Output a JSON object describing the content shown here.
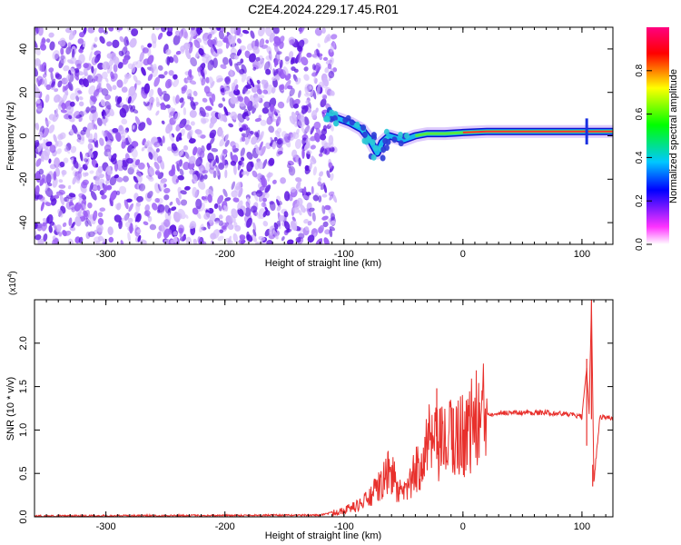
{
  "title": "C2E4.2024.229.17.45.R01",
  "chart_data": [
    {
      "type": "heatmap",
      "xlabel": "Height of straight line (km)",
      "ylabel": "Frequency (Hz)",
      "xlim": [
        -360,
        126
      ],
      "ylim": [
        -50,
        50
      ],
      "xticks": [
        -300,
        -200,
        -100,
        0,
        100
      ],
      "yticks": [
        -40,
        -20,
        0,
        20,
        40
      ],
      "colorbar": {
        "label": "Normalized spectral amplitude",
        "range": [
          0,
          1
        ],
        "ticks": [
          "0.0",
          "0.2",
          "0.4",
          "0.6",
          "0.8"
        ],
        "stops": [
          "#ffffff",
          "#ff33ff",
          "#0000ff",
          "#00c8ff",
          "#00ff00",
          "#ffff00",
          "#ff0000",
          "#ff0080"
        ]
      },
      "noise_region": {
        "x": [
          -360,
          -112
        ],
        "amplitude_range": [
          0.02,
          0.1
        ],
        "color": "#7b2cf0"
      },
      "signal_track": [
        {
          "x": -115,
          "y": 10
        },
        {
          "x": -105,
          "y": 8
        },
        {
          "x": -95,
          "y": 6
        },
        {
          "x": -85,
          "y": 3
        },
        {
          "x": -78,
          "y": -2
        },
        {
          "x": -72,
          "y": -8
        },
        {
          "x": -68,
          "y": -3
        },
        {
          "x": -62,
          "y": 0
        },
        {
          "x": -50,
          "y": -2
        },
        {
          "x": -40,
          "y": 0
        },
        {
          "x": -30,
          "y": 1
        },
        {
          "x": -15,
          "y": 1
        },
        {
          "x": 0,
          "y": 1.5
        },
        {
          "x": 20,
          "y": 2
        },
        {
          "x": 50,
          "y": 2
        },
        {
          "x": 80,
          "y": 2
        },
        {
          "x": 100,
          "y": 2
        },
        {
          "x": 126,
          "y": 2
        }
      ]
    },
    {
      "type": "line",
      "xlabel": "Height of straight line (km)",
      "ylabel": "SNR (10 * v/v)",
      "y_multiplier": "(x10",
      "y_multiplier_exp": "4",
      "y_multiplier_close": ")",
      "xlim": [
        -360,
        126
      ],
      "ylim": [
        0,
        2.5
      ],
      "xticks": [
        -300,
        -200,
        -100,
        0,
        100
      ],
      "yticks": [
        "0.0",
        "0.5",
        "1.0",
        "1.5",
        "2.0"
      ],
      "yticks_values": [
        0,
        0.5,
        1.0,
        1.5,
        2.0
      ],
      "color": "#e8302c",
      "series": [
        {
          "x": [
            -360,
            -120,
            -100,
            -90,
            -80,
            -70,
            -60,
            -55,
            -50,
            -40,
            -30,
            -20,
            -10,
            0,
            10,
            20,
            30,
            50,
            70,
            90,
            100,
            104,
            106,
            108,
            110,
            115,
            120,
            126
          ],
          "y": [
            0.01,
            0.02,
            0.08,
            0.12,
            0.2,
            0.35,
            0.55,
            0.3,
            0.25,
            0.5,
            0.85,
            0.8,
            0.9,
            0.95,
            1.1,
            1.18,
            1.2,
            1.2,
            1.2,
            1.18,
            1.15,
            1.7,
            1.2,
            2.5,
            0.4,
            1.15,
            1.15,
            1.13
          ]
        }
      ],
      "spikes": [
        {
          "x": -22,
          "y": 1.48
        },
        {
          "x": -8,
          "y": 1.25
        },
        {
          "x": 104,
          "y": 1.82
        },
        {
          "x": 108,
          "y": 2.5
        },
        {
          "x": 109,
          "y": 0.35
        }
      ]
    }
  ]
}
